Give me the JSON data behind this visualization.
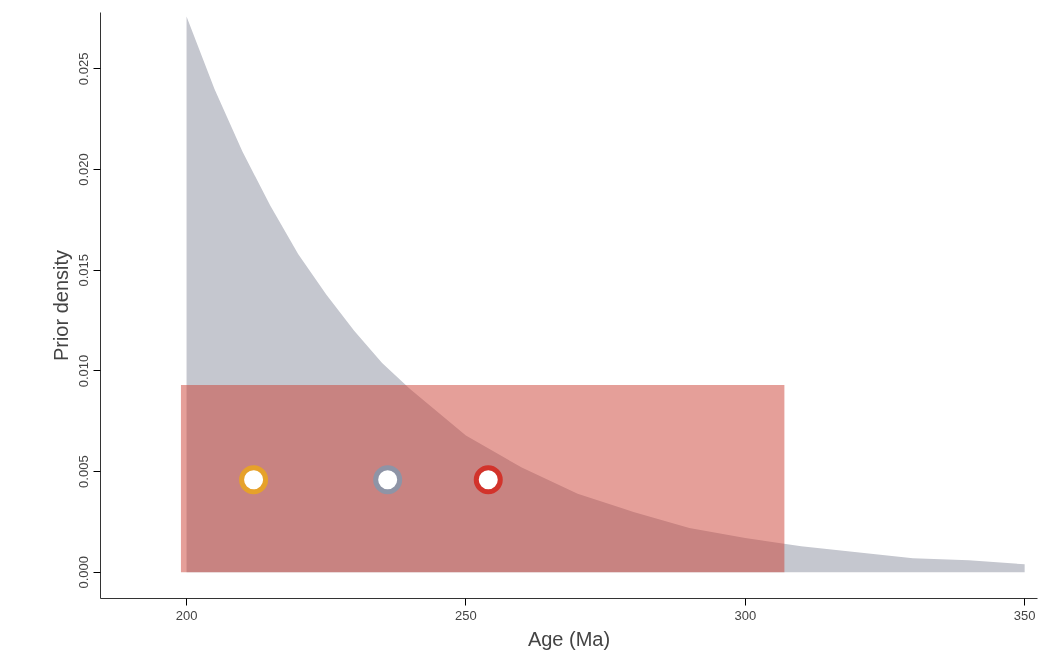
{
  "chart_data": {
    "type": "area",
    "xlabel": "Age (Ma)",
    "ylabel": "Prior density",
    "xlim": [
      184.6,
      352.3
    ],
    "ylim": [
      -0.0013,
      0.0278
    ],
    "xticks": [
      200,
      250,
      300,
      350
    ],
    "yticks": [
      {
        "value": 0,
        "label": "0.000"
      },
      {
        "value": 0.005,
        "label": "0.005"
      },
      {
        "value": 0.01,
        "label": "0.010"
      },
      {
        "value": 0.015,
        "label": "0.015"
      },
      {
        "value": 0.02,
        "label": "0.020"
      },
      {
        "value": 0.025,
        "label": "0.025"
      }
    ],
    "grid": false,
    "series": [
      {
        "color": "#c5c7cf",
        "x": [
          191,
          200,
          200,
          205,
          210,
          215,
          220,
          225,
          230,
          235,
          240,
          250,
          260,
          270,
          280,
          290,
          300,
          310,
          320,
          330,
          340,
          350
        ],
        "values": [
          0,
          0,
          0.0276,
          0.024,
          0.0209,
          0.0182,
          0.0158,
          0.0138,
          0.012,
          0.0104,
          0.0091,
          0.0068,
          0.0052,
          0.0039,
          0.003,
          0.0022,
          0.0017,
          0.0013,
          0.001,
          0.0007,
          0.0006,
          0.0004
        ]
      },
      {
        "type": "area",
        "color": "#cc3f33",
        "x": [
          199,
          220,
          240,
          260,
          280,
          307
        ],
        "values": [
          0.0093,
          0.0093,
          0.0093,
          0.0093,
          0.0093,
          0.0093
        ]
      },
      {
        "type": "scatter",
        "marker": "circle",
        "colors": [
          "#e6a12a",
          "#8e94a6",
          "#d2332b"
        ],
        "x": [
          212,
          236,
          254
        ],
        "values": [
          0.0046,
          0.0046,
          0.0046
        ]
      }
    ]
  }
}
